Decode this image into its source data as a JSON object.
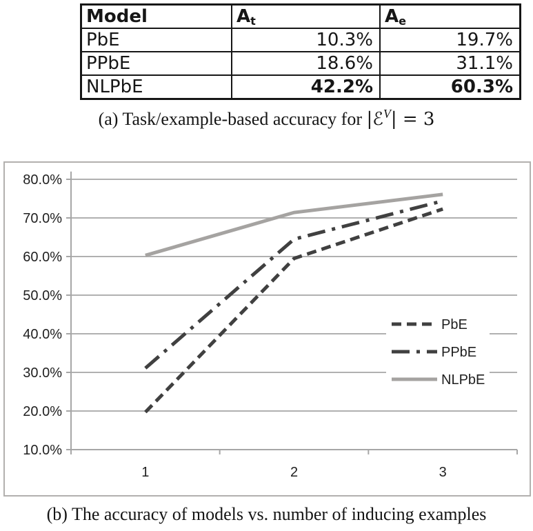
{
  "table": {
    "headers": {
      "model": "Model",
      "col2_base": "A",
      "col2_sub": "t",
      "col3_base": "A",
      "col3_sub": "e"
    },
    "rows": [
      {
        "model": "PbE",
        "at": "10.3%",
        "ae": "19.7%"
      },
      {
        "model": "PPbE",
        "at": "18.6%",
        "ae": "31.1%"
      },
      {
        "model": "NLPbE",
        "at": "42.2%",
        "ae": "60.3%"
      }
    ]
  },
  "caption_a": {
    "text": "(a) Task/example-based accuracy for",
    "math_open": "|",
    "math_symbol": "ℰ",
    "math_sup": "V",
    "math_close": "| = 3"
  },
  "caption_b": "(b) The accuracy of models vs. number of inducing examples",
  "chart_data": {
    "type": "line",
    "x": [
      1,
      2,
      3
    ],
    "x_tick_labels": [
      "1",
      "2",
      "3"
    ],
    "xlabel": "",
    "ylabel": "",
    "title": "",
    "ylim": [
      10,
      82
    ],
    "y_tick_values": [
      10,
      20,
      30,
      40,
      50,
      60,
      70,
      80
    ],
    "y_tick_labels": [
      "10.0%",
      "20.0%",
      "30.0%",
      "40.0%",
      "50.0%",
      "60.0%",
      "70.0%",
      "80.0%"
    ],
    "grid": true,
    "legend_position": "inside-right",
    "series": [
      {
        "name": "PbE",
        "values": [
          19.7,
          59.5,
          72.3
        ],
        "line_style": "dashed",
        "color": "#404040"
      },
      {
        "name": "PPbE",
        "values": [
          31.1,
          64.5,
          74.4
        ],
        "line_style": "dashdot",
        "color": "#404040"
      },
      {
        "name": "NLPbE",
        "values": [
          60.3,
          71.4,
          76.1
        ],
        "line_style": "solid",
        "color": "#a5a3a1"
      }
    ],
    "colors": {
      "gridline": "#b0b0b0",
      "axis": "#a6a6a6",
      "legend_background": "#ffffff",
      "text": "#1f1f1f"
    }
  }
}
